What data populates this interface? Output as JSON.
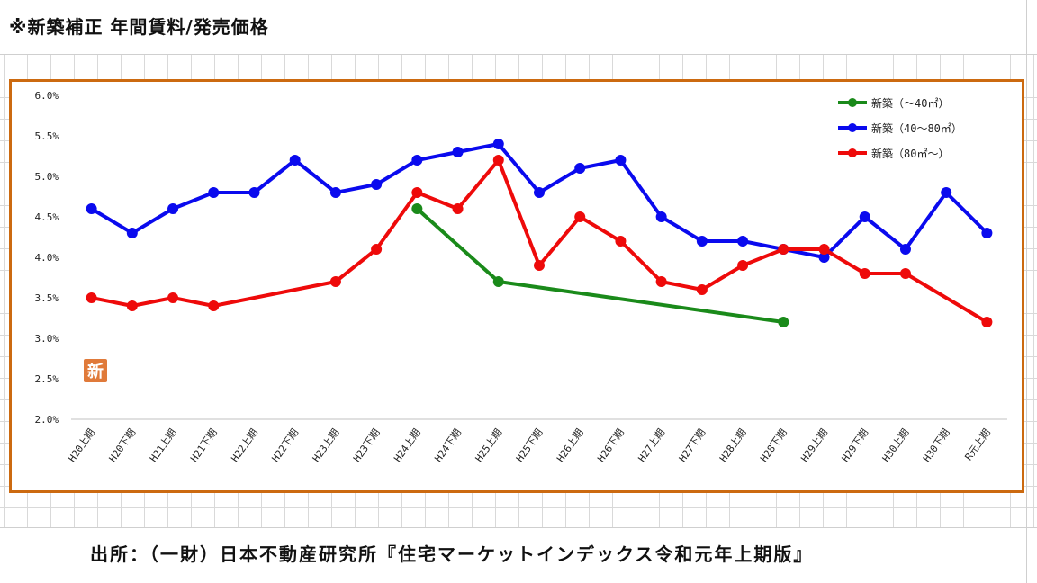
{
  "header": {
    "title": "※新築補正 年間賃料/発売価格"
  },
  "footer": {
    "source": "出所：（一財）日本不動産研究所『住宅マーケットインデックス令和元年上期版』"
  },
  "stamp": {
    "text": "新"
  },
  "colors": {
    "frame": "#cc6a10",
    "stamp": "#e07a3a",
    "small": "#1a8a1a",
    "medium": "#0a0aee",
    "large": "#ee0a0a"
  },
  "chart_data": {
    "type": "line",
    "title": "",
    "xlabel": "",
    "ylabel": "",
    "categories": [
      "H20上期",
      "H20下期",
      "H21上期",
      "H21下期",
      "H22上期",
      "H22下期",
      "H23上期",
      "H23下期",
      "H24上期",
      "H24下期",
      "H25上期",
      "H25下期",
      "H26上期",
      "H26下期",
      "H27上期",
      "H27下期",
      "H28上期",
      "H28下期",
      "H29上期",
      "H29下期",
      "H30上期",
      "H30下期",
      "R元上期"
    ],
    "ylim": [
      2.0,
      6.0
    ],
    "yticks": [
      "2.0%",
      "2.5%",
      "3.0%",
      "3.5%",
      "4.0%",
      "4.5%",
      "5.0%",
      "5.5%",
      "6.0%"
    ],
    "grid": false,
    "legend_position": "top-right",
    "series": [
      {
        "name": "新築（～40㎡）",
        "color": "#1a8a1a",
        "values": [
          null,
          null,
          null,
          null,
          null,
          null,
          null,
          null,
          4.6,
          null,
          3.7,
          null,
          null,
          null,
          null,
          null,
          null,
          3.2,
          null,
          null,
          null,
          null,
          null
        ]
      },
      {
        "name": "新築（40～80㎡）",
        "color": "#0a0aee",
        "values": [
          4.6,
          4.3,
          4.6,
          4.8,
          4.8,
          5.2,
          4.8,
          4.9,
          5.2,
          5.3,
          5.4,
          4.8,
          5.1,
          5.2,
          4.5,
          4.2,
          4.2,
          4.1,
          4.0,
          4.5,
          4.1,
          4.8,
          4.3
        ]
      },
      {
        "name": "新築（80㎡～）",
        "color": "#ee0a0a",
        "values": [
          3.5,
          3.4,
          3.5,
          3.4,
          null,
          null,
          3.7,
          4.1,
          4.8,
          4.6,
          5.2,
          3.9,
          4.5,
          4.2,
          3.7,
          3.6,
          3.9,
          4.1,
          4.1,
          3.8,
          3.8,
          null,
          3.2
        ]
      }
    ]
  }
}
